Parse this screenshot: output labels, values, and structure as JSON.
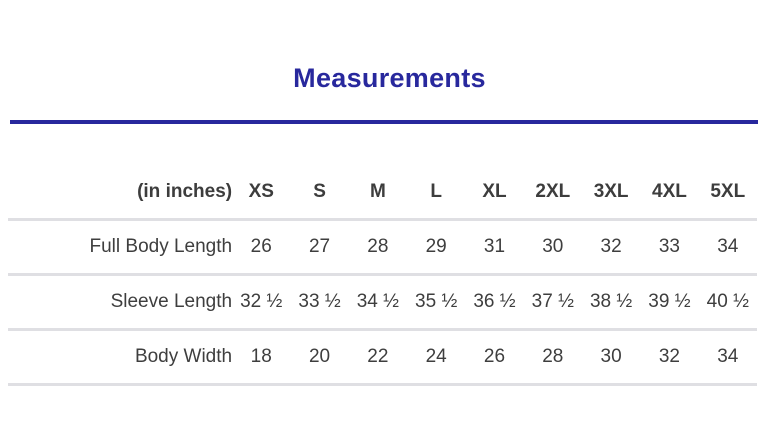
{
  "title": "Measurements",
  "colors": {
    "accent_navy": "#28289d",
    "divider_gray": "#dfdfe3",
    "text_gray": "#3e3e3e"
  },
  "table": {
    "unit_label": "(in inches)",
    "columns": [
      "XS",
      "S",
      "M",
      "L",
      "XL",
      "2XL",
      "3XL",
      "4XL",
      "5XL"
    ],
    "rows": [
      {
        "label": "Full Body Length",
        "values": [
          "26",
          "27",
          "28",
          "29",
          "31",
          "30",
          "32",
          "33",
          "34"
        ]
      },
      {
        "label": "Sleeve Length",
        "values": [
          "32 ½",
          "33 ½",
          "34 ½",
          "35 ½",
          "36 ½",
          "37 ½",
          "38 ½",
          "39 ½",
          "40 ½"
        ]
      },
      {
        "label": "Body Width",
        "values": [
          "18",
          "20",
          "22",
          "24",
          "26",
          "28",
          "30",
          "32",
          "34"
        ]
      }
    ]
  },
  "chart_data": {
    "type": "table",
    "title": "Measurements",
    "unit": "inches",
    "columns": [
      "XS",
      "S",
      "M",
      "L",
      "XL",
      "2XL",
      "3XL",
      "4XL",
      "5XL"
    ],
    "rows": [
      {
        "label": "Full Body Length",
        "values": [
          26,
          27,
          28,
          29,
          31,
          30,
          32,
          33,
          34
        ]
      },
      {
        "label": "Sleeve Length",
        "values": [
          32.5,
          33.5,
          34.5,
          35.5,
          36.5,
          37.5,
          38.5,
          39.5,
          40.5
        ]
      },
      {
        "label": "Body Width",
        "values": [
          18,
          20,
          22,
          24,
          26,
          28,
          30,
          32,
          34
        ]
      }
    ]
  }
}
